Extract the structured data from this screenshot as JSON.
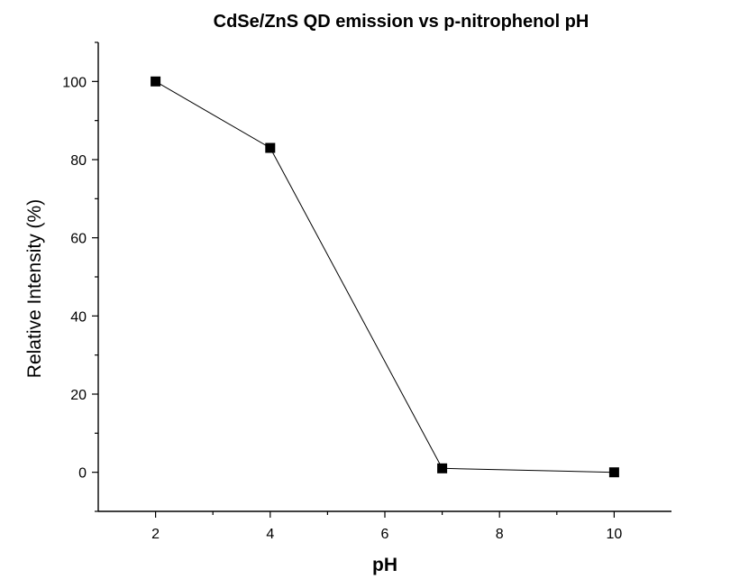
{
  "chart_data": {
    "type": "line",
    "title": "CdSe/ZnS QD emission vs p-nitrophenol pH",
    "xlabel": "pH",
    "ylabel": "Relative Intensity (%)",
    "xlim": [
      1,
      11
    ],
    "ylim": [
      -10,
      110
    ],
    "xticks": [
      2,
      4,
      6,
      8,
      10
    ],
    "xticks_minor": [
      3,
      5,
      7,
      9
    ],
    "yticks": [
      0,
      20,
      40,
      60,
      80,
      100
    ],
    "yticks_minor": [
      -10,
      10,
      30,
      50,
      70,
      90,
      110
    ],
    "grid": false,
    "legend": "none",
    "series": [
      {
        "x": [
          2,
          4,
          7,
          10
        ],
        "y": [
          100,
          83,
          1,
          0
        ],
        "marker": "square",
        "color": "#000000"
      }
    ]
  }
}
